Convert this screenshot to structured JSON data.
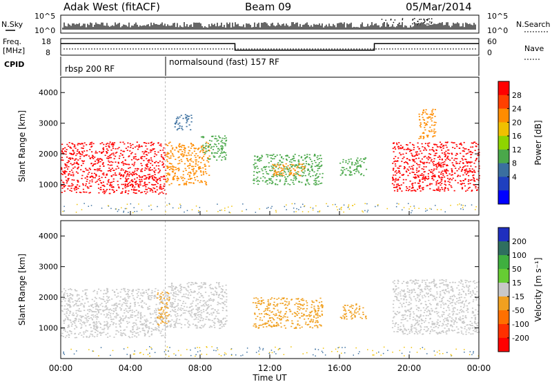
{
  "header": {
    "title": "Adak West (fitACF)",
    "beam": "Beam 09",
    "date": "05/Mar/2014"
  },
  "noise_panel": {
    "left_label": "N.Sky",
    "right_label": "N.Search",
    "left_ticks": [
      "10^5",
      "10^0"
    ],
    "right_ticks": [
      "10^5",
      "10^0"
    ]
  },
  "freq_panel": {
    "left_label_line1": "Freq.",
    "left_label_line2": "[MHz]",
    "right_label": "Nave",
    "left_ticks": [
      "18",
      "8"
    ],
    "right_ticks": [
      "60",
      "0"
    ]
  },
  "cpid_panel": {
    "label": "CPID",
    "modes": [
      {
        "name": "rbsp 200 RF",
        "start": "00:00"
      },
      {
        "name": "normalsound (fast) 157 RF",
        "start": "06:00"
      }
    ]
  },
  "power_colorbar": {
    "label": "Power [dB]",
    "ticks": [
      "28",
      "24",
      "20",
      "16",
      "12",
      "8",
      "4"
    ],
    "colors": [
      "#ff0000",
      "#ff4000",
      "#ff8c00",
      "#f0c000",
      "#8fd400",
      "#4aa84a",
      "#3a6f9f",
      "#1f3fbf",
      "#0000ff"
    ]
  },
  "velocity_colorbar": {
    "label": "Velocity [m s⁻¹]",
    "ticks": [
      "200",
      "100",
      "50",
      "15",
      "-15",
      "-50",
      "-100",
      "-200"
    ],
    "colors": [
      "#1f2fbf",
      "#2f6f5f",
      "#3faf3f",
      "#66cc33",
      "#c8c8c8",
      "#f0a020",
      "#ff7000",
      "#ff3000",
      "#ff0000"
    ]
  },
  "axes": {
    "y_label": "Slant Range [km]",
    "y_ticks": [
      "4000",
      "3000",
      "2000",
      "1000"
    ],
    "x_label": "Time UT",
    "x_ticks": [
      "00:00",
      "04:00",
      "08:00",
      "12:00",
      "16:00",
      "20:00",
      "00:00"
    ]
  },
  "chart_data": [
    {
      "type": "line",
      "title": "",
      "xlabel": "Time UT",
      "ylabel": "Freq. [MHz]",
      "xlim": [
        0,
        24
      ],
      "ylim": [
        8,
        18
      ],
      "series": [
        {
          "x": [
            0,
            6,
            6,
            10,
            10,
            18,
            18,
            24
          ],
          "values": [
            15,
            15,
            15,
            15,
            11,
            11,
            15,
            15
          ]
        }
      ]
    },
    {
      "type": "heatmap",
      "title": "",
      "xlabel": "Time UT",
      "ylabel": "Slant Range [km]",
      "xlim": [
        0,
        24
      ],
      "ylim": [
        0,
        4500
      ],
      "colorbar": "Power [dB]",
      "regions": [
        {
          "t_start": 0.0,
          "t_end": 6.0,
          "range_min": 700,
          "range_max": 2400,
          "power_db": 28
        },
        {
          "t_start": 6.0,
          "t_end": 8.5,
          "range_min": 1000,
          "range_max": 2400,
          "power_db": 20
        },
        {
          "t_start": 8.0,
          "t_end": 9.5,
          "range_min": 1800,
          "range_max": 2600,
          "power_db": 12
        },
        {
          "t_start": 6.5,
          "t_end": 7.5,
          "range_min": 2800,
          "range_max": 3300,
          "power_db": 8
        },
        {
          "t_start": 11.0,
          "t_end": 15.0,
          "range_min": 1000,
          "range_max": 2000,
          "power_db": 12
        },
        {
          "t_start": 12.0,
          "t_end": 14.0,
          "range_min": 1300,
          "range_max": 1700,
          "power_db": 20
        },
        {
          "t_start": 16.0,
          "t_end": 17.5,
          "range_min": 1300,
          "range_max": 1900,
          "power_db": 12
        },
        {
          "t_start": 19.0,
          "t_end": 24.0,
          "range_min": 800,
          "range_max": 2400,
          "power_db": 28
        },
        {
          "t_start": 20.5,
          "t_end": 21.5,
          "range_min": 2500,
          "range_max": 3500,
          "power_db": 20
        }
      ]
    },
    {
      "type": "heatmap",
      "title": "",
      "xlabel": "Time UT",
      "ylabel": "Slant Range [km]",
      "xlim": [
        0,
        24
      ],
      "ylim": [
        0,
        4500
      ],
      "colorbar": "Velocity [m s⁻¹]",
      "regions": [
        {
          "t_start": 0.0,
          "t_end": 6.0,
          "range_min": 700,
          "range_max": 2300,
          "velocity": -15
        },
        {
          "t_start": 6.0,
          "t_end": 9.5,
          "range_min": 1000,
          "range_max": 2500,
          "velocity": -15
        },
        {
          "t_start": 5.5,
          "t_end": 6.2,
          "range_min": 1100,
          "range_max": 2200,
          "velocity": -50
        },
        {
          "t_start": 11.0,
          "t_end": 15.0,
          "range_min": 1000,
          "range_max": 2000,
          "velocity": -50
        },
        {
          "t_start": 16.0,
          "t_end": 17.5,
          "range_min": 1300,
          "range_max": 1800,
          "velocity": -50
        },
        {
          "t_start": 19.0,
          "t_end": 24.0,
          "range_min": 800,
          "range_max": 2600,
          "velocity": -15
        }
      ]
    }
  ]
}
